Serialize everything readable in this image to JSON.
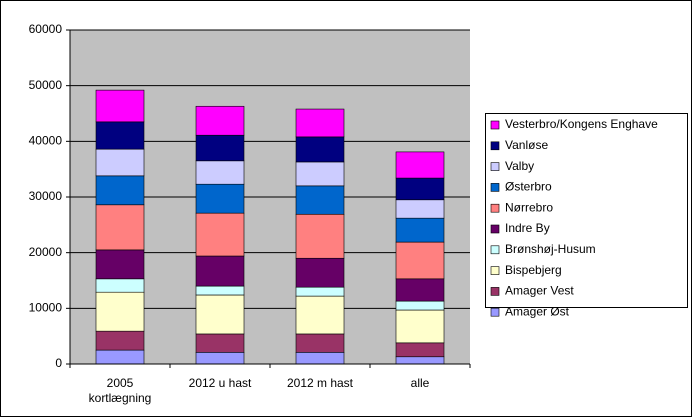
{
  "chart_data": {
    "type": "stacked_bar",
    "categories": [
      "2005 kortlægning",
      "2012 u hast",
      "2012 m hast",
      "alle"
    ],
    "series": [
      {
        "name": "Amager Øst",
        "color": "#9999ff",
        "values": [
          2500,
          2100,
          2100,
          1300
        ]
      },
      {
        "name": "Amager Vest",
        "color": "#993366",
        "values": [
          3400,
          3300,
          3300,
          2500
        ]
      },
      {
        "name": "Bispebjerg",
        "color": "#ffffcc",
        "values": [
          7000,
          7000,
          6800,
          5900
        ]
      },
      {
        "name": "Brønshøj-Husum",
        "color": "#ccffff",
        "values": [
          2400,
          1600,
          1600,
          1600
        ]
      },
      {
        "name": "Indre By",
        "color": "#660066",
        "values": [
          5200,
          5400,
          5200,
          4000
        ]
      },
      {
        "name": "Nørrebro",
        "color": "#ff8080",
        "values": [
          8100,
          7700,
          7900,
          6600
        ]
      },
      {
        "name": "Østerbro",
        "color": "#0066cc",
        "values": [
          5200,
          5200,
          5100,
          4300
        ]
      },
      {
        "name": "Valby",
        "color": "#ccccff",
        "values": [
          4800,
          4200,
          4300,
          3300
        ]
      },
      {
        "name": "Vanløse",
        "color": "#000080",
        "values": [
          4900,
          4600,
          4500,
          3900
        ]
      },
      {
        "name": "Vesterbro/Kongens Enghave",
        "color": "#ff00ff",
        "values": [
          5700,
          5200,
          5000,
          4700
        ]
      }
    ],
    "ylim": [
      0,
      60000
    ],
    "yticks": [
      0,
      10000,
      20000,
      30000,
      40000,
      50000,
      60000
    ],
    "grid": true,
    "legend": "right"
  }
}
